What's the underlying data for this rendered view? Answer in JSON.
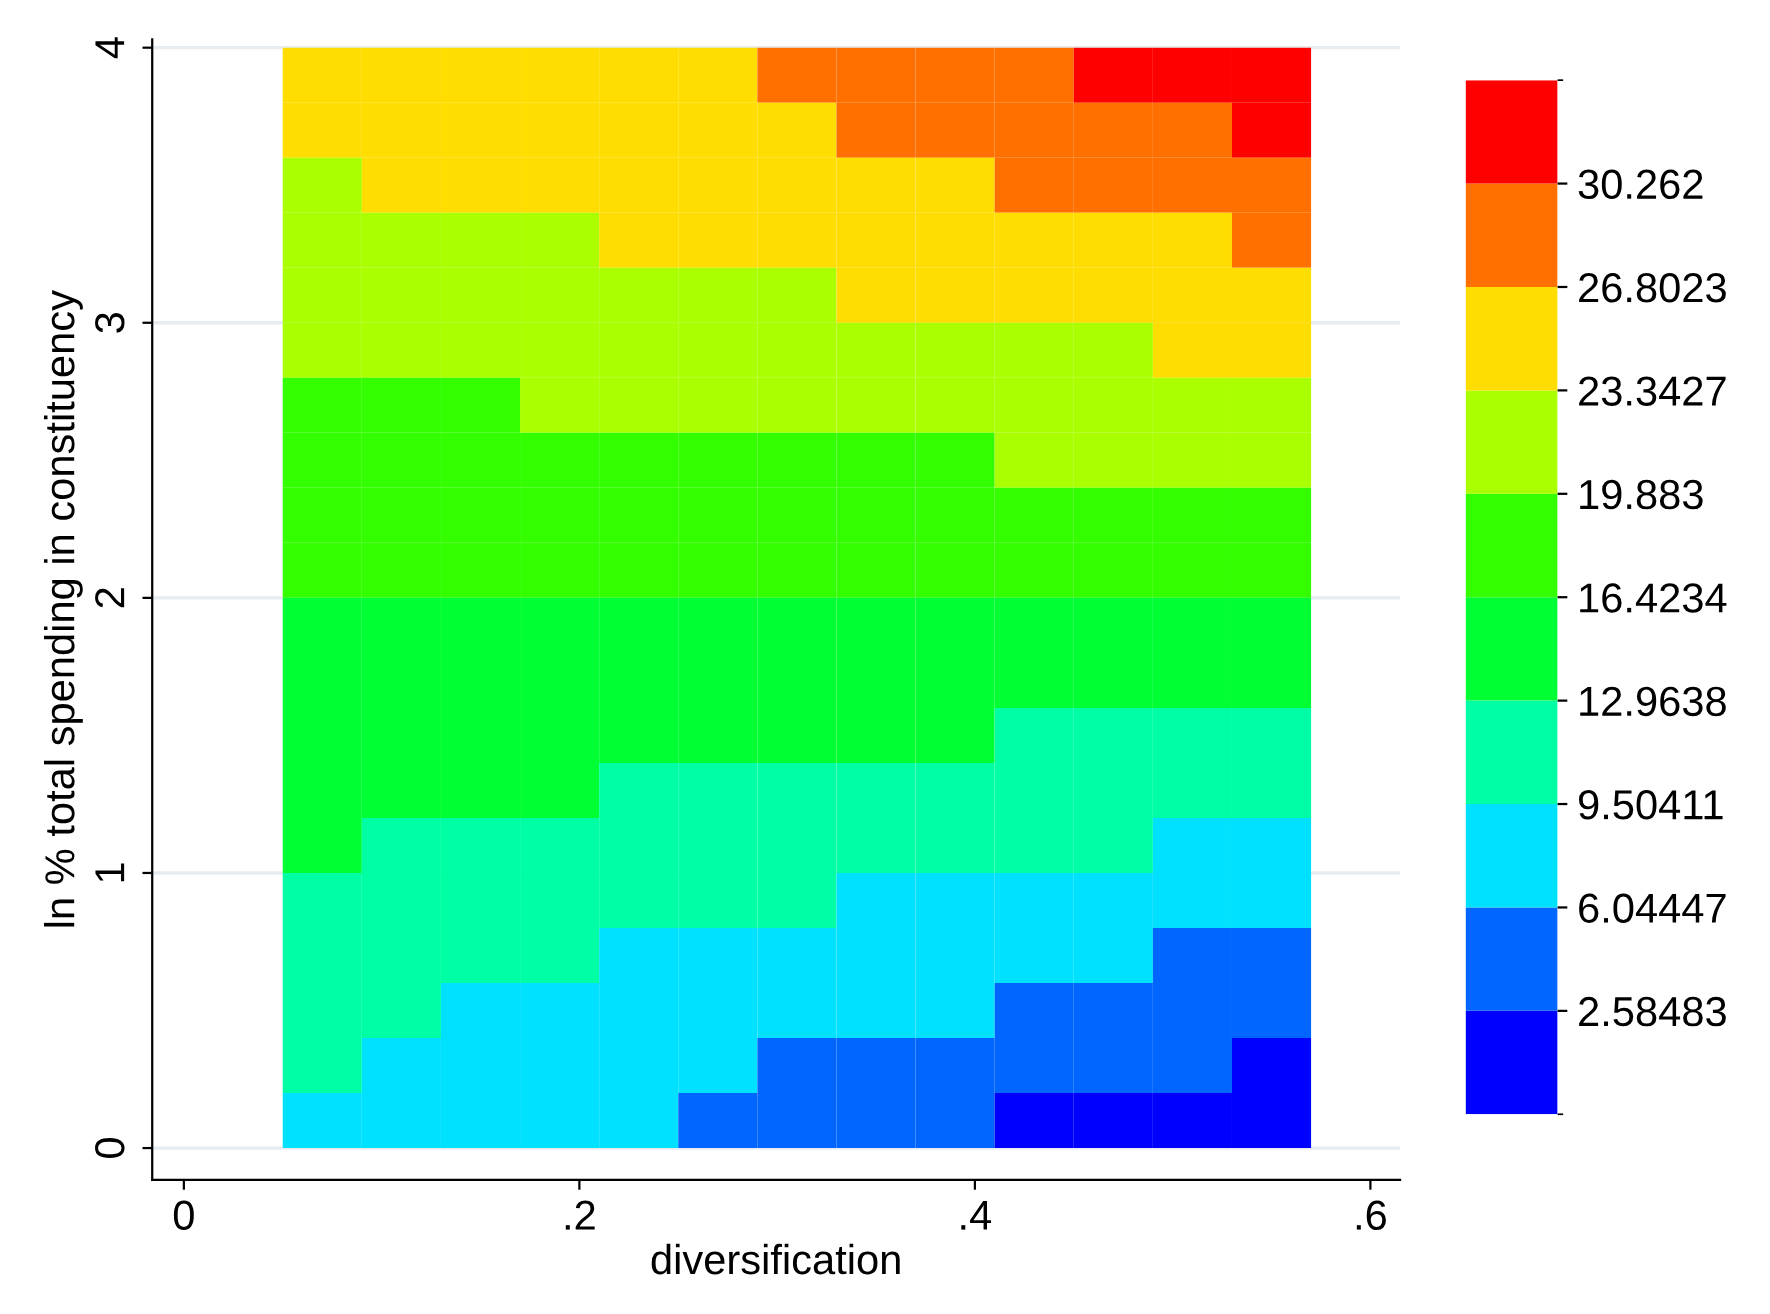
{
  "chart_data": {
    "type": "heatmap",
    "xlabel": "diversification",
    "ylabel": "ln % total spending in constituency",
    "x": [
      0.07,
      0.11,
      0.15,
      0.19,
      0.23,
      0.27,
      0.31,
      0.35,
      0.39,
      0.43,
      0.47,
      0.51,
      0.55
    ],
    "y": [
      3.9,
      3.7,
      3.5,
      3.3,
      3.1,
      2.9,
      2.7,
      2.5,
      2.3,
      2.1,
      1.9,
      1.7,
      1.5,
      1.3,
      1.1,
      0.9,
      0.7,
      0.5,
      0.3,
      0.1
    ],
    "cells": [
      [
        25.1,
        25.1,
        25.1,
        25.1,
        25.1,
        25.1,
        28.5,
        28.5,
        28.5,
        28.5,
        32.0,
        32.0,
        32.0
      ],
      [
        25.1,
        25.1,
        25.1,
        25.1,
        25.1,
        25.1,
        25.1,
        28.5,
        28.5,
        28.5,
        28.5,
        28.5,
        32.0
      ],
      [
        21.6,
        25.1,
        25.1,
        25.1,
        25.1,
        25.1,
        25.1,
        25.1,
        25.1,
        28.5,
        28.5,
        28.5,
        28.5
      ],
      [
        21.6,
        21.6,
        21.6,
        21.6,
        25.1,
        25.1,
        25.1,
        25.1,
        25.1,
        25.1,
        25.1,
        25.1,
        28.5
      ],
      [
        21.6,
        21.6,
        21.6,
        21.6,
        21.6,
        21.6,
        21.6,
        25.1,
        25.1,
        25.1,
        25.1,
        25.1,
        25.1
      ],
      [
        21.6,
        21.6,
        21.6,
        21.6,
        21.6,
        21.6,
        21.6,
        21.6,
        21.6,
        21.6,
        21.6,
        25.1,
        25.1
      ],
      [
        18.2,
        18.2,
        18.2,
        21.6,
        21.6,
        21.6,
        21.6,
        21.6,
        21.6,
        21.6,
        21.6,
        21.6,
        21.6
      ],
      [
        18.2,
        18.2,
        18.2,
        18.2,
        18.2,
        18.2,
        18.2,
        18.2,
        18.2,
        21.6,
        21.6,
        21.6,
        21.6
      ],
      [
        18.2,
        18.2,
        18.2,
        18.2,
        18.2,
        18.2,
        18.2,
        18.2,
        18.2,
        18.2,
        18.2,
        18.2,
        18.2
      ],
      [
        18.2,
        18.2,
        18.2,
        18.2,
        18.2,
        18.2,
        18.2,
        18.2,
        18.2,
        18.2,
        18.2,
        18.2,
        18.2
      ],
      [
        14.7,
        14.7,
        14.7,
        14.7,
        14.7,
        14.7,
        14.7,
        14.7,
        14.7,
        14.7,
        14.7,
        14.7,
        14.7
      ],
      [
        14.7,
        14.7,
        14.7,
        14.7,
        14.7,
        14.7,
        14.7,
        14.7,
        14.7,
        14.7,
        14.7,
        14.7,
        14.7
      ],
      [
        14.7,
        14.7,
        14.7,
        14.7,
        14.7,
        14.7,
        14.7,
        14.7,
        14.7,
        11.2,
        11.2,
        11.2,
        11.2
      ],
      [
        14.7,
        14.7,
        14.7,
        14.7,
        11.2,
        11.2,
        11.2,
        11.2,
        11.2,
        11.2,
        11.2,
        11.2,
        11.2
      ],
      [
        14.7,
        11.2,
        11.2,
        11.2,
        11.2,
        11.2,
        11.2,
        11.2,
        11.2,
        11.2,
        11.2,
        7.8,
        7.8
      ],
      [
        11.2,
        11.2,
        11.2,
        11.2,
        11.2,
        11.2,
        11.2,
        7.8,
        7.8,
        7.8,
        7.8,
        7.8,
        7.8
      ],
      [
        11.2,
        11.2,
        11.2,
        11.2,
        7.8,
        7.8,
        7.8,
        7.8,
        7.8,
        7.8,
        7.8,
        4.3,
        4.3
      ],
      [
        11.2,
        11.2,
        7.8,
        7.8,
        7.8,
        7.8,
        7.8,
        7.8,
        7.8,
        4.3,
        4.3,
        4.3,
        4.3
      ],
      [
        11.2,
        7.8,
        7.8,
        7.8,
        7.8,
        7.8,
        4.3,
        4.3,
        4.3,
        4.3,
        4.3,
        4.3,
        0.9
      ],
      [
        7.8,
        7.8,
        7.8,
        7.8,
        7.8,
        4.3,
        4.3,
        4.3,
        4.3,
        0.9,
        0.9,
        0.9,
        0.9
      ]
    ],
    "colors": [
      "#0000ff",
      "#0066ff",
      "#00e1ff",
      "#00ffa5",
      "#00ff33",
      "#33ff00",
      "#aaff00",
      "#ffdd00",
      "#ff7000",
      "#ff0000"
    ],
    "clim": [
      -0.8748,
      33.7216
    ],
    "cticks": [
      2.58483,
      6.04447,
      9.50411,
      12.9638,
      16.4234,
      19.883,
      23.3427,
      26.8023,
      30.262
    ],
    "xlim": [
      -0.016,
      0.615
    ],
    "xticks": [
      {
        "value": 0,
        "label": "0"
      },
      {
        "value": 0.2,
        "label": ".2"
      },
      {
        "value": 0.4,
        "label": ".4"
      },
      {
        "value": 0.6,
        "label": ".6"
      }
    ],
    "ylim": [
      -0.116,
      4.03
    ],
    "yticks": [
      0,
      1,
      2,
      3,
      4
    ],
    "grid": "y"
  }
}
